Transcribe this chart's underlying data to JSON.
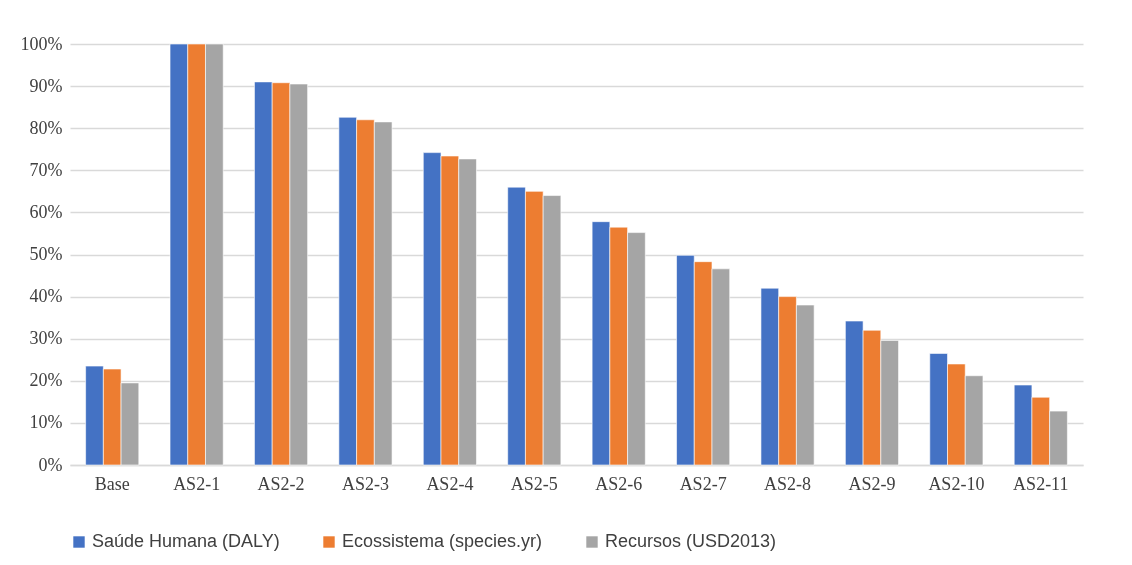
{
  "chart_data": {
    "type": "bar",
    "categories": [
      "Base",
      "AS2-1",
      "AS2-2",
      "AS2-3",
      "AS2-4",
      "AS2-5",
      "AS2-6",
      "AS2-7",
      "AS2-8",
      "AS2-9",
      "AS2-10",
      "AS2-11"
    ],
    "series": [
      {
        "name": "Saúde Humana (DALY)",
        "color": "#4472c4",
        "values": [
          23.5,
          100,
          91,
          82.6,
          74.2,
          66,
          57.8,
          49.8,
          42,
          34.2,
          26.5,
          19
        ]
      },
      {
        "name": "Ecossistema (species.yr)",
        "color": "#ed7d31",
        "values": [
          22.8,
          100,
          90.8,
          82,
          73.4,
          65,
          56.5,
          48.3,
          40,
          32,
          24,
          16.1
        ]
      },
      {
        "name": "Recursos (USD2013)",
        "color": "#a5a5a5",
        "values": [
          19.5,
          100,
          90.5,
          81.5,
          72.7,
          64,
          55.2,
          46.6,
          38,
          29.6,
          21.2,
          12.8
        ]
      }
    ],
    "ylim": [
      0,
      100
    ],
    "yticks": [
      {
        "value": 0,
        "label": "0%"
      },
      {
        "value": 10,
        "label": "10%"
      },
      {
        "value": 20,
        "label": "20%"
      },
      {
        "value": 30,
        "label": "30%"
      },
      {
        "value": 40,
        "label": "40%"
      },
      {
        "value": 50,
        "label": "50%"
      },
      {
        "value": 60,
        "label": "60%"
      },
      {
        "value": 70,
        "label": "70%"
      },
      {
        "value": 80,
        "label": "80%"
      },
      {
        "value": 90,
        "label": "90%"
      },
      {
        "value": 100,
        "label": "100%"
      }
    ],
    "grid": "y",
    "legend": "bottom"
  }
}
